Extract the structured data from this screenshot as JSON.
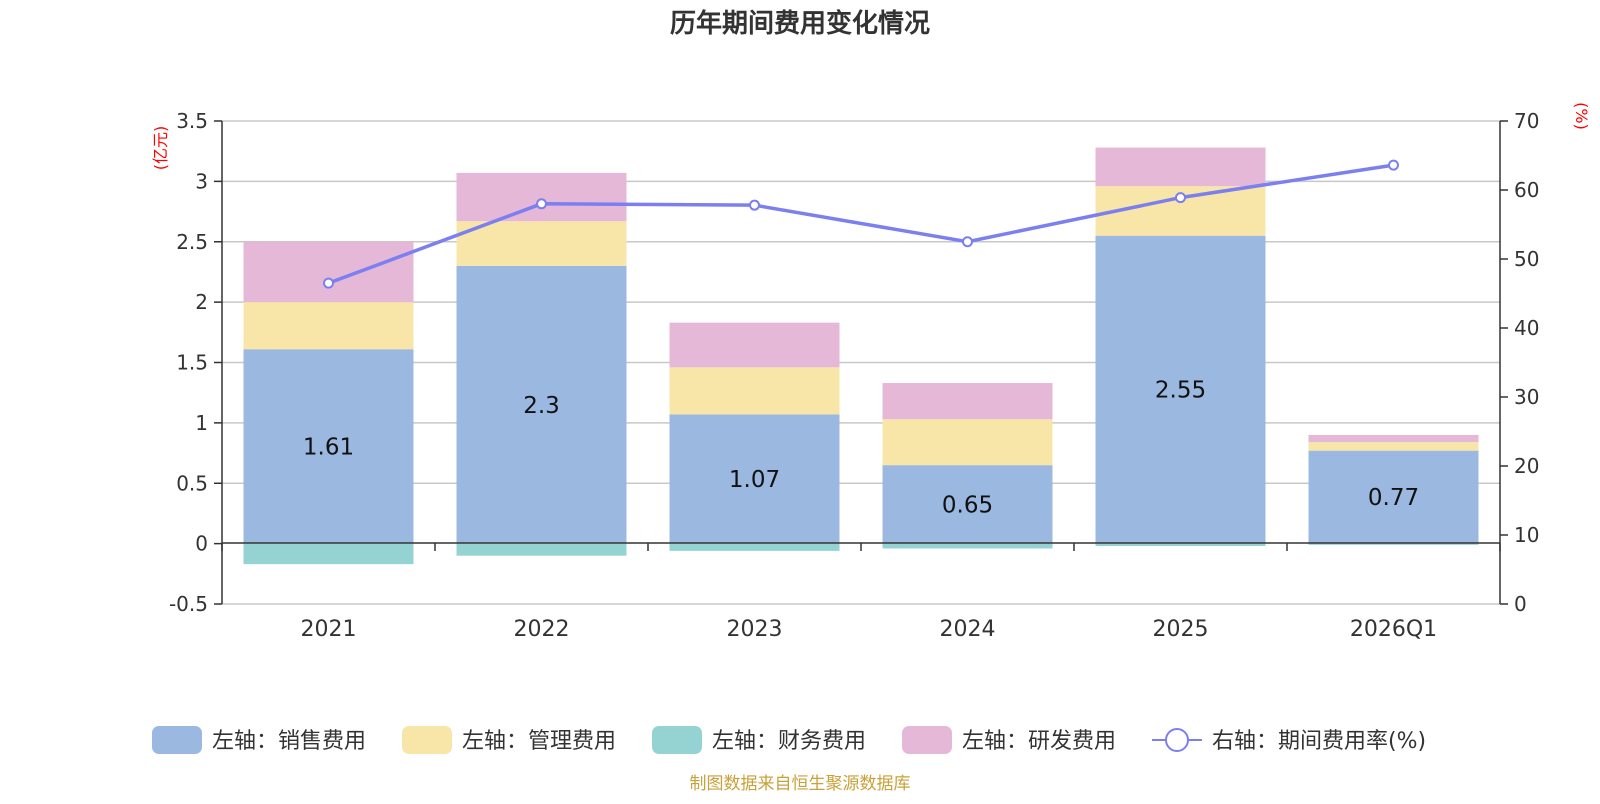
{
  "chart_data": {
    "type": "bar",
    "title": "历年期间费用变化情况",
    "categories": [
      "2021",
      "2022",
      "2023",
      "2024",
      "2025",
      "2026Q1"
    ],
    "stacked": true,
    "series": [
      {
        "name": "左轴：销售费用",
        "axis": "left",
        "color": "#9bb8e0",
        "values": [
          1.61,
          2.3,
          1.07,
          0.65,
          2.55,
          0.77
        ],
        "show_labels": true
      },
      {
        "name": "左轴：管理费用",
        "axis": "left",
        "color": "#f8e6a8",
        "values": [
          0.39,
          0.37,
          0.39,
          0.38,
          0.41,
          0.07
        ],
        "show_labels": false
      },
      {
        "name": "左轴：财务费用",
        "axis": "left",
        "color": "#95d3d3",
        "values": [
          -0.17,
          -0.1,
          -0.06,
          -0.04,
          -0.02,
          -0.01
        ],
        "show_labels": false
      },
      {
        "name": "左轴：研发费用",
        "axis": "left",
        "color": "#e6b8d8",
        "values": [
          0.5,
          0.4,
          0.37,
          0.3,
          0.32,
          0.06
        ],
        "show_labels": false
      }
    ],
    "line_series": {
      "name": "右轴：期间费用率(%)",
      "axis": "right",
      "color": "#7b7ff0",
      "values": [
        46.5,
        58.0,
        57.8,
        52.5,
        58.9,
        63.6
      ]
    },
    "left_axis": {
      "unit": "(亿元)",
      "ylim": [
        -0.5,
        3.5
      ],
      "ticks": [
        -0.5,
        0,
        0.5,
        1,
        1.5,
        2,
        2.5,
        3,
        3.5
      ],
      "tick_labels": [
        "-0.5",
        "0",
        "0.5",
        "1",
        "1.5",
        "2",
        "2.5",
        "3",
        "3.5"
      ]
    },
    "right_axis": {
      "unit": "(%)",
      "ylim": [
        0,
        70
      ],
      "ticks": [
        0,
        10,
        20,
        30,
        40,
        50,
        60,
        70
      ],
      "tick_labels": [
        "0",
        "10",
        "20",
        "30",
        "40",
        "50",
        "60",
        "70"
      ]
    },
    "grid": true,
    "legend_position": "bottom",
    "source": "制图数据来自恒生聚源数据库",
    "source_color": "#c9a13a",
    "axis_label_color": "#ff0000"
  }
}
